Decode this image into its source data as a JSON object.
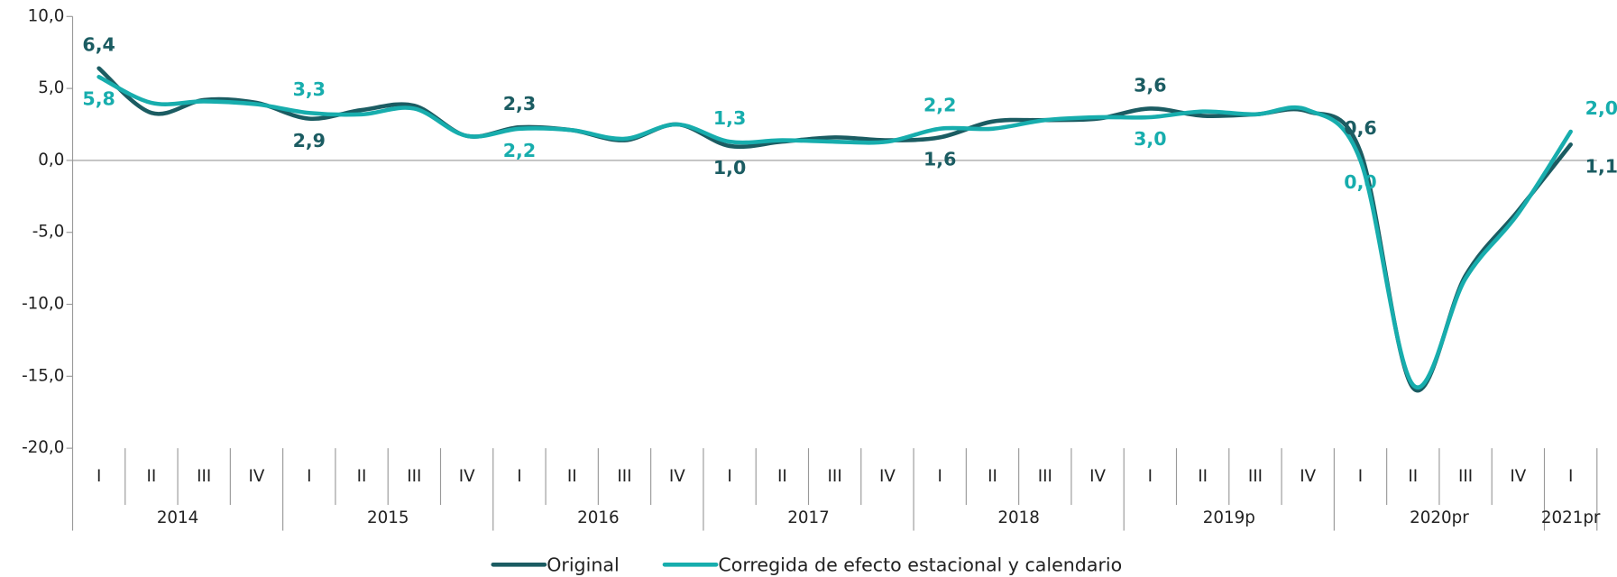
{
  "chart_data": {
    "type": "line",
    "categories": [
      "I",
      "II",
      "III",
      "IV",
      "I",
      "II",
      "III",
      "IV",
      "I",
      "II",
      "III",
      "IV",
      "I",
      "II",
      "III",
      "IV",
      "I",
      "II",
      "III",
      "IV",
      "I",
      "II",
      "III",
      "IV",
      "I",
      "II",
      "III",
      "IV",
      "I"
    ],
    "category_groups": [
      "2014",
      "2015",
      "2016",
      "2017",
      "2018",
      "2019p",
      "2020pr",
      "2021pr"
    ],
    "series": [
      {
        "name": "Original",
        "color": "#1b5c62",
        "values": [
          6.4,
          3.3,
          4.2,
          4.0,
          2.9,
          3.5,
          3.8,
          1.7,
          2.3,
          2.1,
          1.4,
          2.5,
          1.0,
          1.3,
          1.6,
          1.4,
          1.6,
          2.7,
          2.8,
          2.9,
          3.6,
          3.1,
          3.2,
          3.4,
          0.6,
          -15.8,
          -8.0,
          -3.5,
          1.1
        ],
        "value_labels": [
          "6,4",
          null,
          null,
          null,
          "2,9",
          null,
          null,
          null,
          "2,3",
          null,
          null,
          null,
          "1,0",
          null,
          null,
          null,
          "1,6",
          null,
          null,
          null,
          "3,6",
          null,
          null,
          null,
          "0,6",
          null,
          null,
          null,
          "1,1"
        ]
      },
      {
        "name": "Corregida de efecto estacional y calendario",
        "color": "#17adad",
        "values": [
          5.8,
          4.0,
          4.1,
          3.9,
          3.3,
          3.2,
          3.6,
          1.7,
          2.2,
          2.1,
          1.5,
          2.5,
          1.3,
          1.4,
          1.3,
          1.3,
          2.2,
          2.2,
          2.8,
          3.0,
          3.0,
          3.4,
          3.2,
          3.5,
          0.0,
          -15.6,
          -8.2,
          -3.7,
          2.0
        ],
        "value_labels": [
          "5,8",
          null,
          null,
          null,
          "3,3",
          null,
          null,
          null,
          "2,2",
          null,
          null,
          null,
          "1,3",
          null,
          null,
          null,
          "2,2",
          null,
          null,
          null,
          "3,0",
          null,
          null,
          null,
          "0,0",
          null,
          null,
          null,
          "2,0"
        ]
      }
    ],
    "ylim": [
      -20,
      10
    ],
    "yticks": [
      {
        "value": -20,
        "label": "-20,0"
      },
      {
        "value": -15,
        "label": "-15,0"
      },
      {
        "value": -10,
        "label": "-10,0"
      },
      {
        "value": -5,
        "label": "-5,0"
      },
      {
        "value": 0,
        "label": "0,0"
      },
      {
        "value": 5,
        "label": "5,0"
      },
      {
        "value": 10,
        "label": "10,0"
      }
    ],
    "legend": "bottom"
  }
}
